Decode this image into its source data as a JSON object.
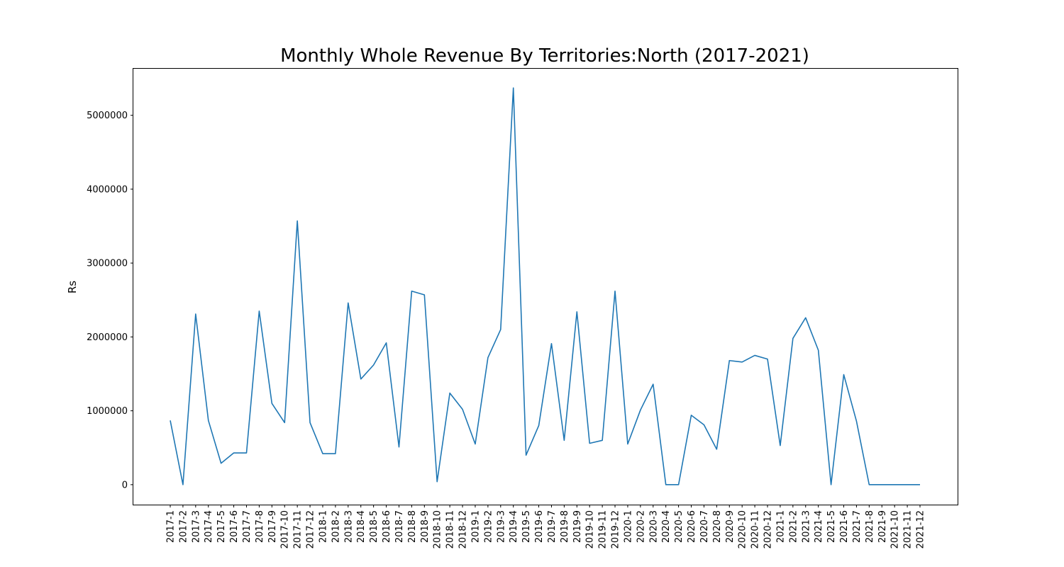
{
  "chart_data": {
    "type": "line",
    "title": "Monthly Whole Revenue By Territories:North (2017-2021)",
    "xlabel": "",
    "ylabel": "Rs",
    "ylim": [
      -270000,
      5630000
    ],
    "yticks": [
      0,
      1000000,
      2000000,
      3000000,
      4000000,
      5000000
    ],
    "ytick_labels": [
      "0",
      "1000000",
      "2000000",
      "3000000",
      "4000000",
      "5000000"
    ],
    "grid": false,
    "legend": "none",
    "line_color": "#1f77b4",
    "categories": [
      "2017-1",
      "2017-2",
      "2017-3",
      "2017-4",
      "2017-5",
      "2017-6",
      "2017-7",
      "2017-8",
      "2017-9",
      "2017-10",
      "2017-11",
      "2017-12",
      "2018-1",
      "2018-2",
      "2018-3",
      "2018-4",
      "2018-5",
      "2018-6",
      "2018-7",
      "2018-8",
      "2018-9",
      "2018-10",
      "2018-11",
      "2018-12",
      "2019-1",
      "2019-2",
      "2019-3",
      "2019-4",
      "2019-5",
      "2019-6",
      "2019-7",
      "2019-8",
      "2019-9",
      "2019-10",
      "2019-11",
      "2019-12",
      "2020-1",
      "2020-2",
      "2020-3",
      "2020-4",
      "2020-5",
      "2020-6",
      "2020-7",
      "2020-8",
      "2020-9",
      "2020-10",
      "2020-11",
      "2020-12",
      "2021-1",
      "2021-2",
      "2021-3",
      "2021-4",
      "2021-5",
      "2021-6",
      "2021-7",
      "2021-8",
      "2021-9",
      "2021-10",
      "2021-11",
      "2021-12"
    ],
    "values": [
      870000,
      0,
      2310000,
      870000,
      290000,
      430000,
      430000,
      2350000,
      1100000,
      840000,
      3570000,
      840000,
      420000,
      420000,
      2460000,
      1430000,
      1620000,
      1920000,
      510000,
      2620000,
      2570000,
      40000,
      1240000,
      1020000,
      550000,
      1720000,
      2100000,
      5370000,
      400000,
      800000,
      1910000,
      600000,
      2340000,
      560000,
      600000,
      2620000,
      550000,
      1010000,
      1360000,
      0,
      0,
      940000,
      810000,
      480000,
      1680000,
      1660000,
      1750000,
      1700000,
      530000,
      1980000,
      2260000,
      1820000,
      0,
      1490000,
      860000,
      0,
      0,
      0,
      0,
      0
    ]
  }
}
